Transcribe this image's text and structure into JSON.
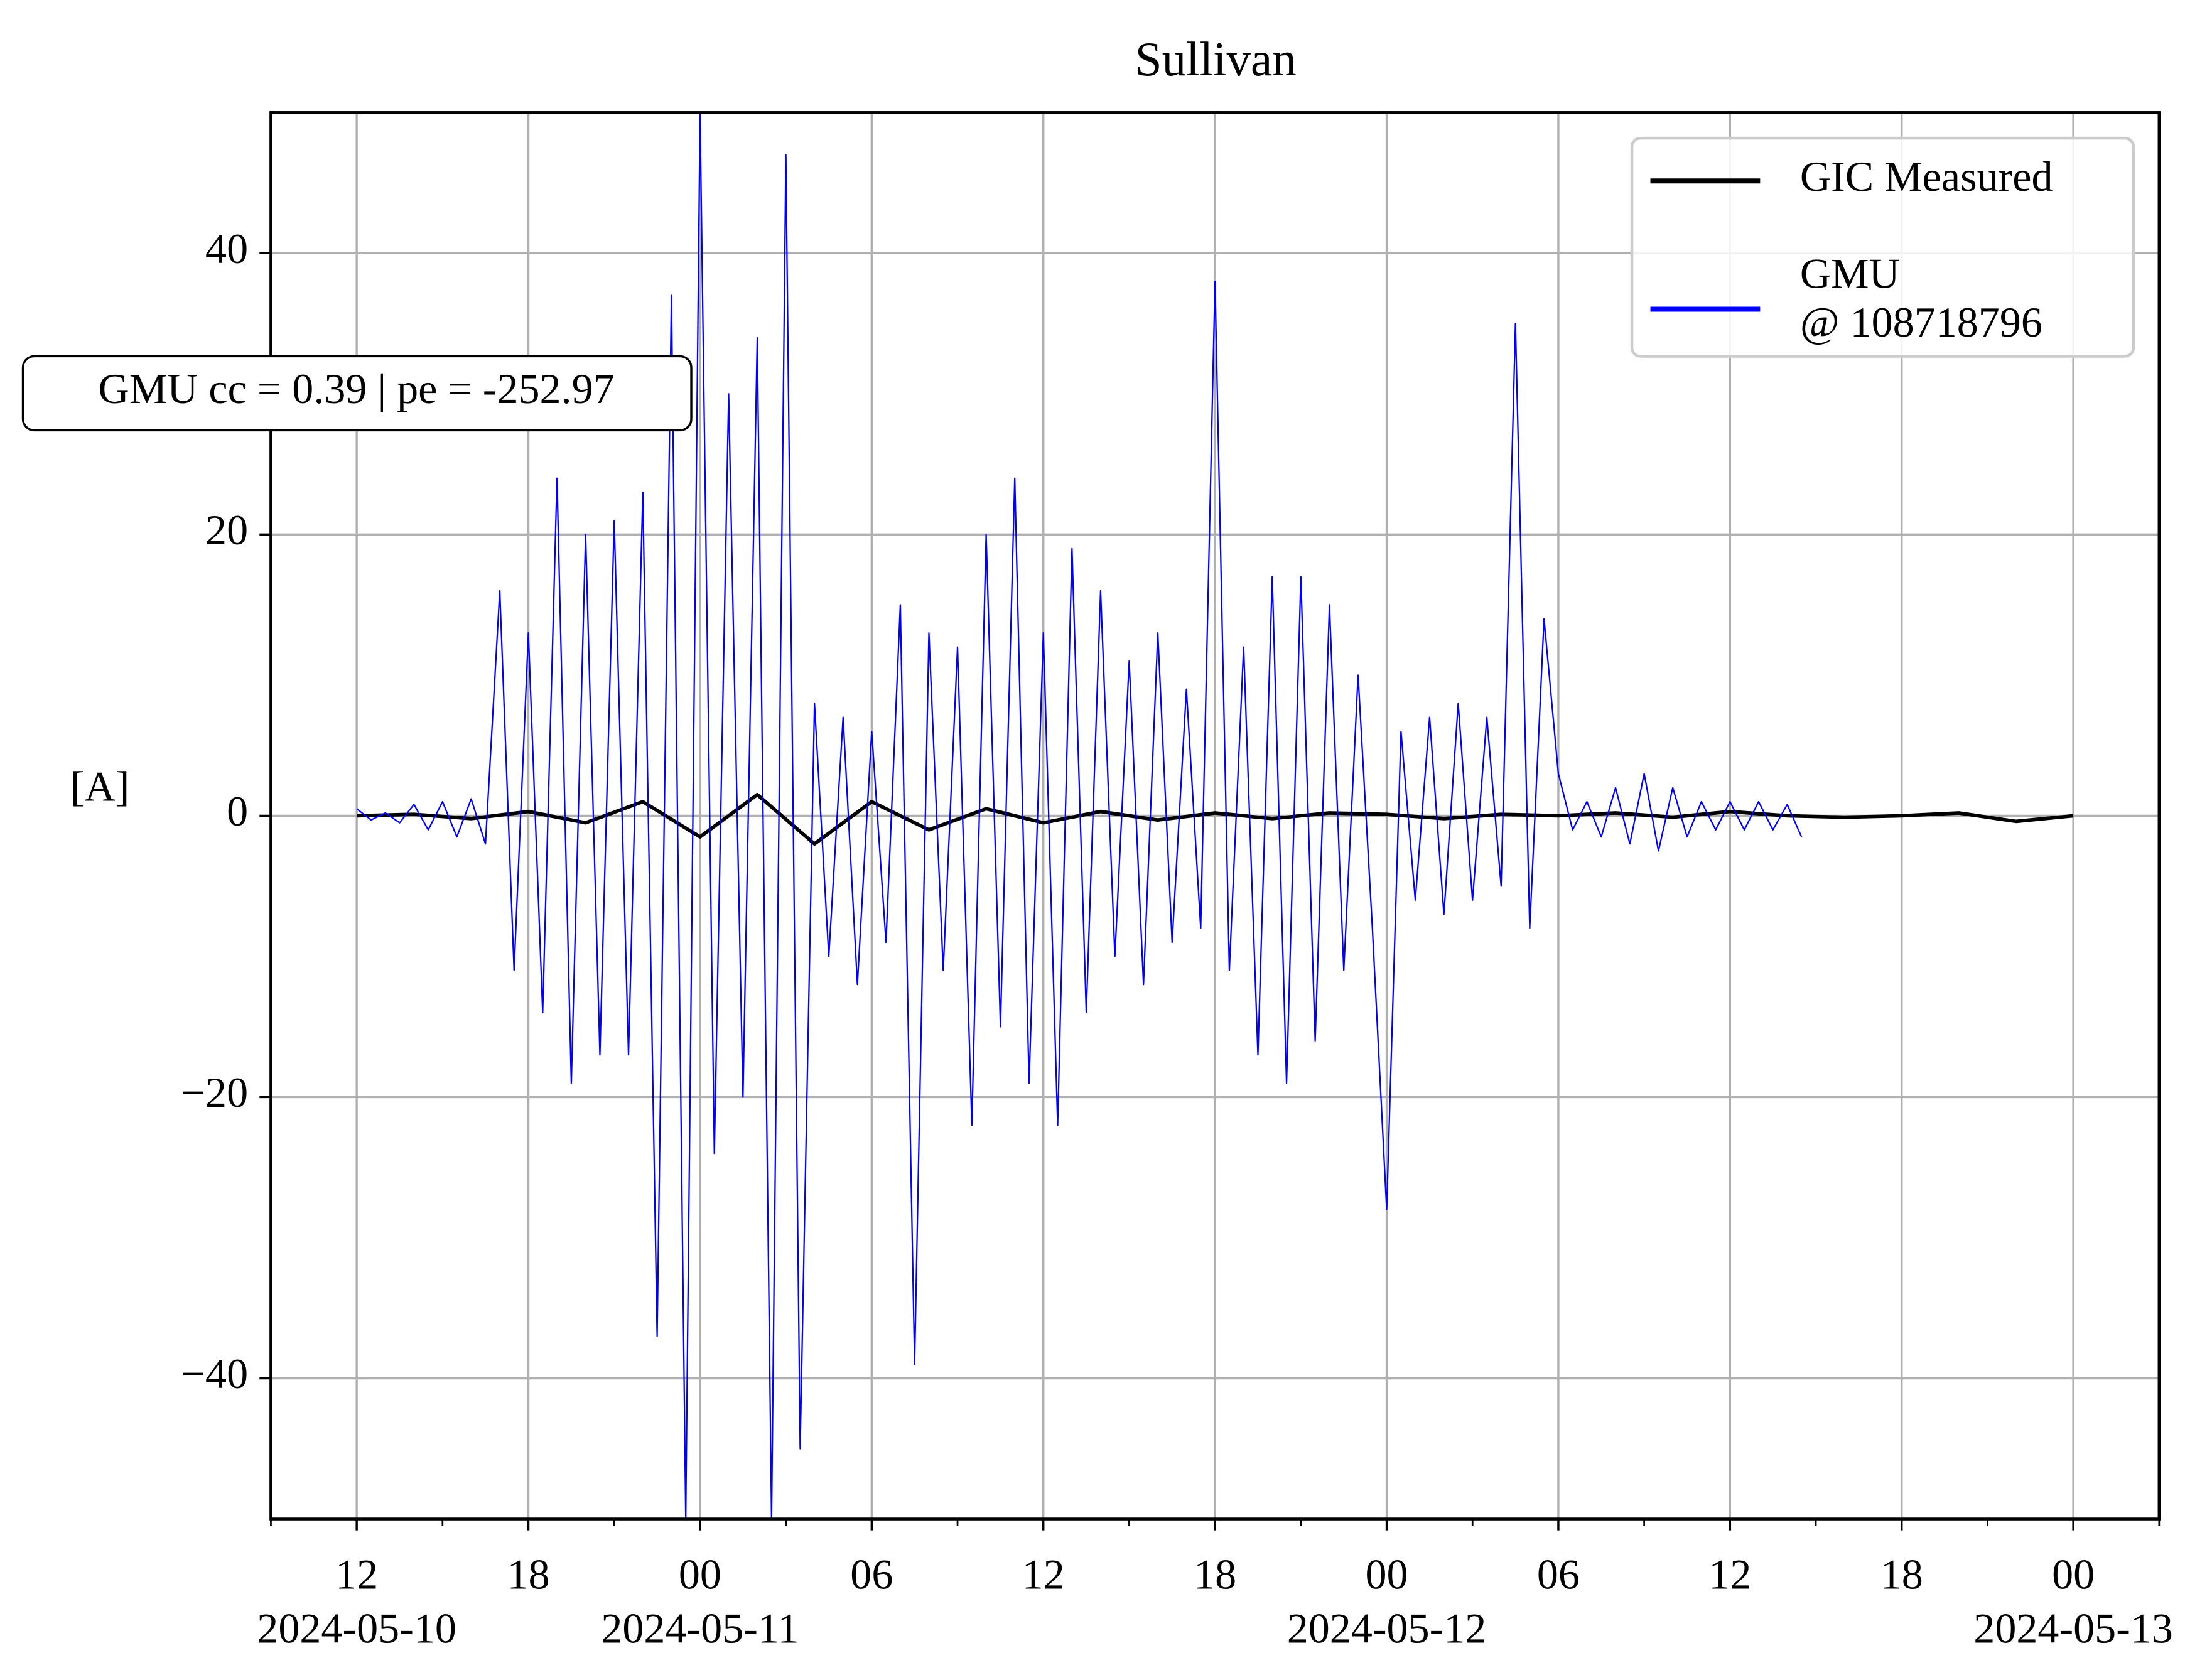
{
  "chart_data": {
    "type": "line",
    "title": "Sullivan",
    "ylabel": "[A]",
    "annotation": "GMU cc = 0.39 | pe = -252.97",
    "xlim": [
      "2024-05-10 09:00",
      "2024-05-13 03:00"
    ],
    "xticks": [
      {
        "value": "2024-05-10 12:00",
        "label": "12",
        "date": "2024-05-10"
      },
      {
        "value": "2024-05-10 18:00",
        "label": "18"
      },
      {
        "value": "2024-05-11 00:00",
        "label": "00",
        "date": "2024-05-11"
      },
      {
        "value": "2024-05-11 06:00",
        "label": "06"
      },
      {
        "value": "2024-05-11 12:00",
        "label": "12"
      },
      {
        "value": "2024-05-11 18:00",
        "label": "18"
      },
      {
        "value": "2024-05-12 00:00",
        "label": "00",
        "date": "2024-05-12"
      },
      {
        "value": "2024-05-12 06:00",
        "label": "06"
      },
      {
        "value": "2024-05-12 12:00",
        "label": "12"
      },
      {
        "value": "2024-05-12 18:00",
        "label": "18"
      },
      {
        "value": "2024-05-13 00:00",
        "label": "00",
        "date": "2024-05-13"
      }
    ],
    "xminorticks": [
      "2024-05-10 09:00",
      "2024-05-10 15:00",
      "2024-05-10 21:00",
      "2024-05-11 03:00",
      "2024-05-11 09:00",
      "2024-05-11 15:00",
      "2024-05-11 21:00",
      "2024-05-12 03:00",
      "2024-05-12 09:00",
      "2024-05-12 15:00",
      "2024-05-12 21:00",
      "2024-05-13 03:00"
    ],
    "ylim": [
      -50,
      50
    ],
    "yticks": [
      {
        "value": -40,
        "label": "−40"
      },
      {
        "value": -20,
        "label": "−20"
      },
      0,
      20,
      40
    ],
    "grid": true,
    "legend": "upper right",
    "series": [
      {
        "name": "GIC Measured",
        "color": "#000000",
        "x": [
          "2024-05-10 12:00",
          "2024-05-10 14:00",
          "2024-05-10 16:00",
          "2024-05-10 18:00",
          "2024-05-10 20:00",
          "2024-05-10 22:00",
          "2024-05-11 00:00",
          "2024-05-11 02:00",
          "2024-05-11 04:00",
          "2024-05-11 06:00",
          "2024-05-11 08:00",
          "2024-05-11 10:00",
          "2024-05-11 12:00",
          "2024-05-11 14:00",
          "2024-05-11 16:00",
          "2024-05-11 18:00",
          "2024-05-11 20:00",
          "2024-05-11 22:00",
          "2024-05-12 00:00",
          "2024-05-12 02:00",
          "2024-05-12 04:00",
          "2024-05-12 06:00",
          "2024-05-12 08:00",
          "2024-05-12 10:00",
          "2024-05-12 12:00",
          "2024-05-12 14:00",
          "2024-05-12 16:00",
          "2024-05-12 18:00",
          "2024-05-12 20:00",
          "2024-05-12 22:00",
          "2024-05-13 00:00"
        ],
        "values": [
          0,
          0.1,
          -0.2,
          0.3,
          -0.5,
          1,
          -1.5,
          1.5,
          -2,
          1,
          -1,
          0.5,
          -0.5,
          0.3,
          -0.3,
          0.2,
          -0.2,
          0.2,
          0.1,
          -0.2,
          0.1,
          0,
          0.2,
          -0.1,
          0.3,
          0,
          -0.1,
          0,
          0.2,
          -0.4,
          0
        ]
      },
      {
        "name": "GMU\n@ 108718796",
        "color": "#0000ff",
        "x": [
          "2024-05-10 12:00",
          "2024-05-10 12:30",
          "2024-05-10 13:00",
          "2024-05-10 13:30",
          "2024-05-10 14:00",
          "2024-05-10 14:30",
          "2024-05-10 15:00",
          "2024-05-10 15:30",
          "2024-05-10 16:00",
          "2024-05-10 16:30",
          "2024-05-10 17:00",
          "2024-05-10 17:30",
          "2024-05-10 18:00",
          "2024-05-10 18:30",
          "2024-05-10 19:00",
          "2024-05-10 19:30",
          "2024-05-10 20:00",
          "2024-05-10 20:30",
          "2024-05-10 21:00",
          "2024-05-10 21:30",
          "2024-05-10 22:00",
          "2024-05-10 22:30",
          "2024-05-10 23:00",
          "2024-05-10 23:30",
          "2024-05-11 00:00",
          "2024-05-11 00:30",
          "2024-05-11 01:00",
          "2024-05-11 01:30",
          "2024-05-11 02:00",
          "2024-05-11 02:30",
          "2024-05-11 03:00",
          "2024-05-11 03:30",
          "2024-05-11 04:00",
          "2024-05-11 04:30",
          "2024-05-11 05:00",
          "2024-05-11 05:30",
          "2024-05-11 06:00",
          "2024-05-11 06:30",
          "2024-05-11 07:00",
          "2024-05-11 07:30",
          "2024-05-11 08:00",
          "2024-05-11 08:30",
          "2024-05-11 09:00",
          "2024-05-11 09:30",
          "2024-05-11 10:00",
          "2024-05-11 10:30",
          "2024-05-11 11:00",
          "2024-05-11 11:30",
          "2024-05-11 12:00",
          "2024-05-11 12:30",
          "2024-05-11 13:00",
          "2024-05-11 13:30",
          "2024-05-11 14:00",
          "2024-05-11 14:30",
          "2024-05-11 15:00",
          "2024-05-11 15:30",
          "2024-05-11 16:00",
          "2024-05-11 16:30",
          "2024-05-11 17:00",
          "2024-05-11 17:30",
          "2024-05-11 18:00",
          "2024-05-11 18:30",
          "2024-05-11 19:00",
          "2024-05-11 19:30",
          "2024-05-11 20:00",
          "2024-05-11 20:30",
          "2024-05-11 21:00",
          "2024-05-11 21:30",
          "2024-05-11 22:00",
          "2024-05-11 22:30",
          "2024-05-11 23:00",
          "2024-05-11 23:30",
          "2024-05-12 00:00",
          "2024-05-12 00:30",
          "2024-05-12 01:00",
          "2024-05-12 01:30",
          "2024-05-12 02:00",
          "2024-05-12 02:30",
          "2024-05-12 03:00",
          "2024-05-12 03:30",
          "2024-05-12 04:00",
          "2024-05-12 04:30",
          "2024-05-12 05:00",
          "2024-05-12 05:30",
          "2024-05-12 06:00",
          "2024-05-12 06:30",
          "2024-05-12 07:00",
          "2024-05-12 07:30",
          "2024-05-12 08:00",
          "2024-05-12 08:30",
          "2024-05-12 09:00",
          "2024-05-12 09:30",
          "2024-05-12 10:00",
          "2024-05-12 10:30",
          "2024-05-12 11:00",
          "2024-05-12 11:30",
          "2024-05-12 12:00",
          "2024-05-12 12:30",
          "2024-05-12 13:00",
          "2024-05-12 13:30",
          "2024-05-12 14:00",
          "2024-05-12 14:30"
        ],
        "values": [
          0.5,
          -0.3,
          0.2,
          -0.5,
          0.8,
          -1,
          1,
          -1.5,
          1.2,
          -2,
          16,
          -11,
          13,
          -14,
          24,
          -19,
          20,
          -17,
          21,
          -17,
          23,
          -37,
          37,
          -50,
          50,
          -24,
          30,
          -20,
          34,
          -50,
          47,
          -45,
          8,
          -10,
          7,
          -12,
          6,
          -9,
          15,
          -39,
          13,
          -11,
          12,
          -22,
          20,
          -15,
          24,
          -19,
          13,
          -22,
          19,
          -14,
          16,
          -10,
          11,
          -12,
          13,
          -9,
          9,
          -8,
          38,
          -11,
          12,
          -17,
          17,
          -19,
          17,
          -16,
          15,
          -11,
          10,
          -8,
          -28,
          6,
          -6,
          7,
          -7,
          8,
          -6,
          7,
          -5,
          35,
          -8,
          14,
          3,
          -1,
          1,
          -1.5,
          2,
          -2,
          3,
          -2.5,
          2,
          -1.5,
          1,
          -1,
          1,
          -1,
          1,
          -1,
          0.8,
          -1.5
        ]
      }
    ]
  }
}
